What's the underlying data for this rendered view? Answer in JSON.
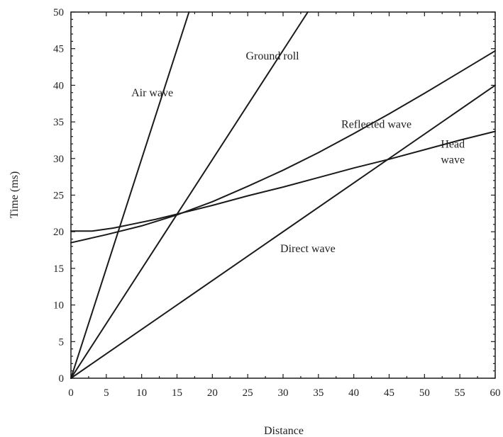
{
  "chart_data": {
    "type": "line",
    "xlabel": "Distance",
    "ylabel": "Time (ms)",
    "xlim": [
      0,
      60
    ],
    "ylim": [
      0,
      50
    ],
    "x_ticks": [
      0,
      5,
      10,
      15,
      20,
      25,
      30,
      35,
      40,
      45,
      50,
      55,
      60
    ],
    "y_ticks": [
      0,
      5,
      10,
      15,
      20,
      25,
      30,
      35,
      40,
      45,
      50
    ],
    "grid": false,
    "series": [
      {
        "name": "Air wave",
        "x": [
          0,
          16.7
        ],
        "y": [
          0,
          50
        ]
      },
      {
        "name": "Ground roll",
        "x": [
          0,
          33.5
        ],
        "y": [
          0,
          50
        ]
      },
      {
        "name": "Direct wave",
        "x": [
          0,
          60
        ],
        "y": [
          0,
          40
        ]
      },
      {
        "name": "Reflected wave",
        "x": [
          0,
          5,
          10,
          15,
          20,
          25,
          30,
          35,
          40,
          45,
          50,
          55,
          60
        ],
        "y": [
          18.5,
          19.6,
          20.8,
          22.3,
          24.1,
          26.2,
          28.4,
          30.8,
          33.4,
          36.1,
          38.9,
          41.8,
          44.7
        ]
      },
      {
        "name": "Head wave",
        "x": [
          0,
          3,
          6,
          9,
          12,
          15,
          20,
          25,
          30,
          35,
          40,
          45,
          50,
          55,
          60
        ],
        "y": [
          20.1,
          20.1,
          20.5,
          21.1,
          21.7,
          22.4,
          23.6,
          24.9,
          26.1,
          27.4,
          28.7,
          29.9,
          31.2,
          32.5,
          33.7
        ]
      }
    ],
    "annotations": [
      {
        "text": "Air wave",
        "x": 11.5,
        "y": 38.5
      },
      {
        "text": "Ground roll",
        "x": 28.5,
        "y": 43.5
      },
      {
        "text": "Reflected wave",
        "x": 43.2,
        "y": 34.2
      },
      {
        "text": "Head",
        "x": 54,
        "y": 31.5,
        "text2": "wave"
      },
      {
        "text": "Direct wave",
        "x": 33.5,
        "y": 17.2
      }
    ]
  }
}
